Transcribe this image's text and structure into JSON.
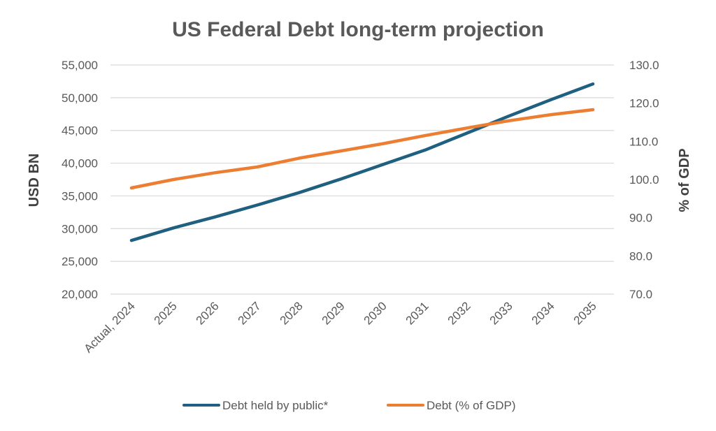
{
  "chart_data": {
    "type": "line",
    "title": "US Federal Debt long-term projection",
    "categories": [
      "Actual, 2024",
      "2025",
      "2026",
      "2027",
      "2028",
      "2029",
      "2030",
      "2031",
      "2032",
      "2033",
      "2034",
      "2035"
    ],
    "y_left": {
      "label": "USD BN",
      "ylim": [
        20000,
        55000
      ],
      "ticks": [
        "20,000",
        "25,000",
        "30,000",
        "35,000",
        "40,000",
        "45,000",
        "50,000",
        "55,000"
      ]
    },
    "y_right": {
      "label": "% of GDP",
      "ylim": [
        70.0,
        130.0
      ],
      "ticks": [
        "70.0",
        "80.0",
        "90.0",
        "100.0",
        "110.0",
        "120.0",
        "130.0"
      ]
    },
    "series": [
      {
        "name": "Debt held by public*",
        "axis": "left",
        "color": "#1f5f7f",
        "values": [
          28200,
          30100,
          31800,
          33600,
          35500,
          37600,
          39800,
          42000,
          44600,
          47200,
          49700,
          52100
        ]
      },
      {
        "name": "Debt (% of GDP)",
        "axis": "right",
        "color": "#ed7d31",
        "values": [
          97.8,
          100.0,
          101.8,
          103.3,
          105.6,
          107.5,
          109.4,
          111.5,
          113.5,
          115.4,
          117.0,
          118.3
        ]
      }
    ],
    "grid": true,
    "legend": "bottom"
  }
}
